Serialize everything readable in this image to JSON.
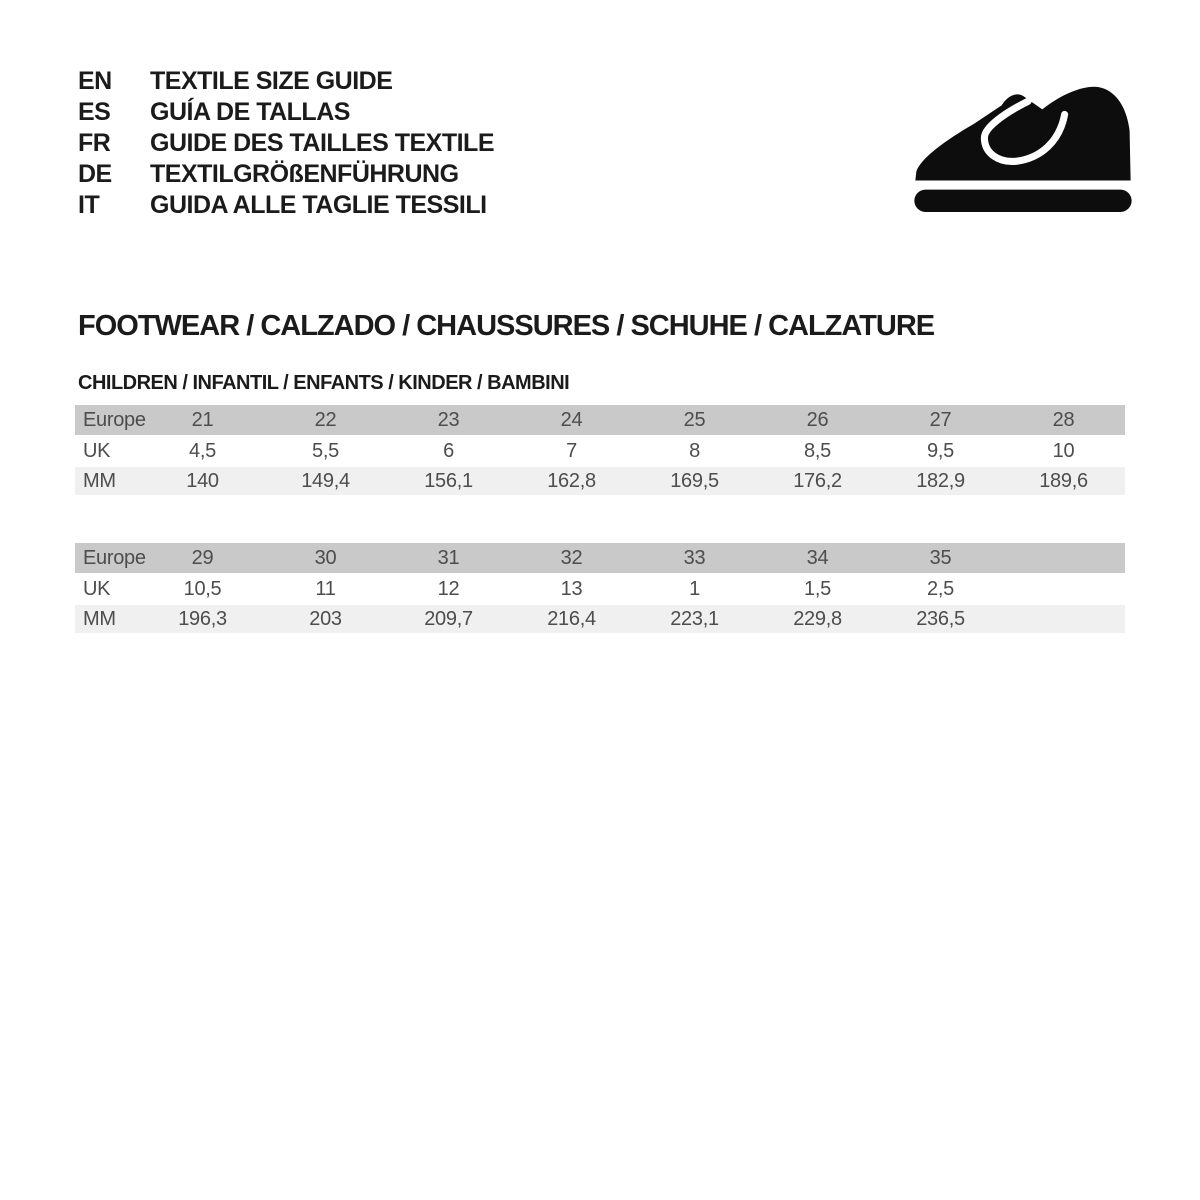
{
  "header": {
    "languages": [
      {
        "code": "EN",
        "label": "TEXTILE SIZE GUIDE"
      },
      {
        "code": "ES",
        "label": "GUÍA DE TALLAS"
      },
      {
        "code": "FR",
        "label": "GUIDE DES TAILLES TEXTILE"
      },
      {
        "code": "DE",
        "label": "TEXTILGRÖßENFÜHRUNG"
      },
      {
        "code": "IT",
        "label": "GUIDA ALLE TAGLIE TESSILI"
      }
    ],
    "icon": "children-shoe-icon"
  },
  "section": {
    "title": "FOOTWEAR / CALZADO / CHAUSSURES / SCHUHE / CALZATURE",
    "subtitle": "CHILDREN / INFANTIL / ENFANTS / KINDER / BAMBINI"
  },
  "colors": {
    "ink": "#1b1b1b",
    "icon_black": "#0d0d0d",
    "table_text": "#4d4d4d",
    "header_row_bg": "#c9c9c9",
    "uk_row_bg": "#ffffff",
    "mm_row_bg": "#f0f0f0",
    "page_bg": "#ffffff"
  },
  "size_tables": [
    {
      "rows": [
        {
          "label": "Europe",
          "values": [
            "21",
            "22",
            "23",
            "24",
            "25",
            "26",
            "27",
            "28"
          ]
        },
        {
          "label": "UK",
          "values": [
            "4,5",
            "5,5",
            "6",
            "7",
            "8",
            "8,5",
            "9,5",
            "10"
          ]
        },
        {
          "label": "MM",
          "values": [
            "140",
            "149,4",
            "156,1",
            "162,8",
            "169,5",
            "176,2",
            "182,9",
            "189,6"
          ]
        }
      ]
    },
    {
      "rows": [
        {
          "label": "Europe",
          "values": [
            "29",
            "30",
            "31",
            "32",
            "33",
            "34",
            "35",
            ""
          ]
        },
        {
          "label": "UK",
          "values": [
            "10,5",
            "11",
            "12",
            "13",
            "1",
            "1,5",
            "2,5",
            ""
          ]
        },
        {
          "label": "MM",
          "values": [
            "196,3",
            "203",
            "209,7",
            "216,4",
            "223,1",
            "229,8",
            "236,5",
            ""
          ]
        }
      ]
    }
  ]
}
